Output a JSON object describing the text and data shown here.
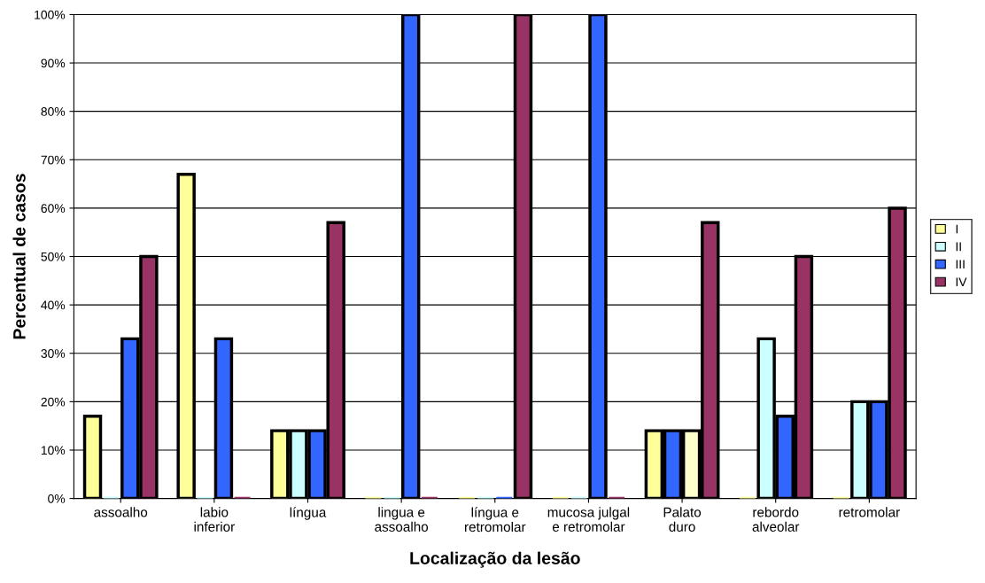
{
  "chart_data": {
    "type": "bar",
    "xlabel": "Localização da lesão",
    "ylabel": "Percentual de casos",
    "categories": [
      "assoalho",
      "labio\ninferior",
      "língua",
      "lingua e\nassoalho",
      "língua e\nretromolar",
      "mucosa julgal\ne retromolar",
      "Palato\nduro",
      "rebordo\nalveolar",
      "retromolar"
    ],
    "series": [
      {
        "name": "I",
        "color": "#ffff99",
        "values": [
          17,
          67,
          14,
          0,
          0,
          0,
          14,
          0,
          0
        ]
      },
      {
        "name": "II",
        "color": "#ccffff",
        "colors": [
          "#ccffff",
          "#ccffff",
          "#ccffff",
          "#ccffff",
          "#ccffff",
          "#ccffff",
          "#3366ff",
          "#ccffff",
          "#ccffff"
        ],
        "values": [
          0,
          0,
          14,
          0,
          0,
          0,
          14,
          33,
          20
        ]
      },
      {
        "name": "III",
        "color": "#3366ff",
        "colors": [
          "#3366ff",
          "#3366ff",
          "#3366ff",
          "#3366ff",
          "#3366ff",
          "#3366ff",
          "#ffffcc",
          "#3366ff",
          "#3366ff"
        ],
        "values": [
          33,
          33,
          14,
          100,
          0,
          100,
          14,
          17,
          20
        ]
      },
      {
        "name": "IV",
        "color": "#993366",
        "values": [
          50,
          0,
          57,
          0,
          100,
          0,
          57,
          50,
          60
        ]
      }
    ],
    "ylim": [
      0,
      100
    ],
    "yticks": [
      {
        "value": 0,
        "label": "0%"
      },
      {
        "value": 10,
        "label": "10%"
      },
      {
        "value": 20,
        "label": "20%"
      },
      {
        "value": 30,
        "label": "30%"
      },
      {
        "value": 40,
        "label": "40%"
      },
      {
        "value": 50,
        "label": "50%"
      },
      {
        "value": 60,
        "label": "60%"
      },
      {
        "value": 70,
        "label": "70%"
      },
      {
        "value": 80,
        "label": "80%"
      },
      {
        "value": 90,
        "label": "90%"
      },
      {
        "value": 100,
        "label": "100%"
      }
    ],
    "grid": "y",
    "legend": "right"
  }
}
